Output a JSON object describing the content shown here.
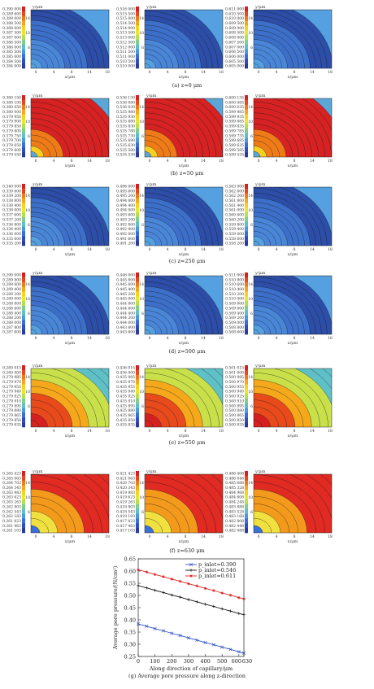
{
  "figure": {
    "axis_x_label": "x/μm",
    "axis_y_label": "y/μm",
    "x_ticks": [
      "0",
      "4",
      "8",
      "14",
      "18"
    ],
    "y_ticks": [
      "14",
      "10",
      "6"
    ],
    "captions": [
      "(a) z=0 μm",
      "(b) z=50 μm",
      "(c) z=250 μm",
      "(d) z=500 μm",
      "(e) z=550 μm",
      "(f) z=630 μm",
      "(g) Average pore pressure along z-direction"
    ],
    "rows": [
      {
        "style": "blue",
        "panels": [
          {
            "legend": [
              "0.390 000",
              "0.389 600",
              "0.389 000",
              "0.388 500",
              "0.388 000",
              "0.387 500",
              "0.387 000",
              "0.386 500",
              "0.386 000",
              "0.385 500",
              "0.385 000",
              "0.384 500",
              "0.384 000"
            ]
          },
          {
            "legend": [
              "0.516 000",
              "0.515 500",
              "0.515 000",
              "0.514 500",
              "0.514 000",
              "0.513 500",
              "0.513 000",
              "0.512 500",
              "0.512 000",
              "0.511 500",
              "0.511 000",
              "0.510 500",
              "0.510 000"
            ]
          },
          {
            "legend": [
              "0.611 000",
              "0.610 500",
              "0.610 000",
              "0.609 500",
              "0.609 000",
              "0.608 500",
              "0.608 000",
              "0.607 500",
              "0.607 000",
              "0.606 500",
              "0.606 000",
              "0.605 500",
              "0.605 000"
            ]
          }
        ]
      },
      {
        "style": "red",
        "panels": [
          {
            "legend": [
              "0.380 150",
              "0.380 100",
              "0.380 050",
              "0.380 000",
              "0.379 950",
              "0.379 900",
              "0.379 850",
              "0.379 800",
              "0.379 750",
              "0.379 700",
              "0.379 650",
              "0.379 600",
              "0.379 550"
            ]
          },
          {
            "legend": [
              "0.536 130",
              "0.536 080",
              "0.536 030",
              "0.535 980",
              "0.535 930",
              "0.535 880",
              "0.535 830",
              "0.535 780",
              "0.535 730",
              "0.535 680",
              "0.535 630",
              "0.535 580",
              "0.535 530"
            ]
          },
          {
            "legend": [
              "0.600 135",
              "0.600 085",
              "0.600 035",
              "0.599 985",
              "0.599 935",
              "0.599 885",
              "0.599 835",
              "0.599 785",
              "0.599 735",
              "0.599 685",
              "0.599 635",
              "0.599 585",
              "0.599 535"
            ]
          }
        ]
      },
      {
        "style": "blue",
        "panels": [
          {
            "legend": [
              "0.340 000",
              "0.339 600",
              "0.339 200",
              "0.338 800",
              "0.338 400",
              "0.338 000",
              "0.337 600",
              "0.337 200",
              "0.336 800",
              "0.336 400",
              "0.336 000",
              "0.335 600",
              "0.335 200"
            ]
          },
          {
            "legend": [
              "0.496 000",
              "0.495 600",
              "0.495 200",
              "0.494 800",
              "0.494 400",
              "0.494 000",
              "0.493 600",
              "0.493 200",
              "0.492 800",
              "0.492 400",
              "0.492 000",
              "0.491 600",
              "0.491 200"
            ]
          },
          {
            "legend": [
              "0.563 000",
              "0.562 600",
              "0.562 200",
              "0.561 800",
              "0.561 400",
              "0.561 000",
              "0.560 600",
              "0.560 200",
              "0.559 800",
              "0.559 400",
              "0.559 000",
              "0.558 600",
              "0.558 200"
            ]
          }
        ]
      },
      {
        "style": "blue",
        "panels": [
          {
            "legend": [
              "0.290 000",
              "0.289 800",
              "0.289 600",
              "0.289 400",
              "0.289 200",
              "0.289 000",
              "0.288 800",
              "0.288 600",
              "0.288 400",
              "0.288 200",
              "0.288 000",
              "0.287 800",
              "0.287 600"
            ]
          },
          {
            "legend": [
              "0.446 000",
              "0.445 800",
              "0.445 600",
              "0.445 400",
              "0.445 200",
              "0.445 000",
              "0.444 800",
              "0.444 600",
              "0.444 400",
              "0.444 200",
              "0.444 000",
              "0.443 800",
              "0.443 600"
            ]
          },
          {
            "legend": [
              "0.511 000",
              "0.510 800",
              "0.510 600",
              "0.510 400",
              "0.510 200",
              "0.510 000",
              "0.509 800",
              "0.509 600",
              "0.509 400",
              "0.509 200",
              "0.509 000",
              "0.508 800",
              "0.508 600"
            ]
          }
        ]
      },
      {
        "style": "rainbow",
        "panels": [
          {
            "legend": [
              "0.280 015",
              "0.280 000",
              "0.279 985",
              "0.279 970",
              "0.279 955",
              "0.279 940",
              "0.279 925",
              "0.279 910",
              "0.279 895",
              "0.279 880",
              "0.279 865",
              "0.279 850",
              "0.279 835"
            ]
          },
          {
            "legend": [
              "0.436 015",
              "0.436 000",
              "0.435 985",
              "0.435 970",
              "0.435 955",
              "0.435 940",
              "0.435 925",
              "0.435 910",
              "0.435 895",
              "0.435 880",
              "0.435 865",
              "0.435 850",
              "0.435 835"
            ]
          },
          {
            "legend": [
              "0.501 015",
              "0.501 000",
              "0.500 985",
              "0.500 970",
              "0.500 955",
              "0.500 940",
              "0.500 925",
              "0.500 910",
              "0.500 895",
              "0.500 880",
              "0.500 865",
              "0.500 850",
              "0.500 835"
            ]
          }
        ]
      },
      {
        "style": "redcorner",
        "panels": [
          {
            "legend": [
              "0.265 423",
              "0.265 063",
              "0.264 703",
              "0.264 343",
              "0.263 983",
              "0.263 623",
              "0.263 263",
              "0.262 903",
              "0.262 543",
              "0.262 183",
              "0.261 823",
              "0.261 463",
              "0.261 103"
            ]
          },
          {
            "legend": [
              "0.421 423",
              "0.421 063",
              "0.420 703",
              "0.420 343",
              "0.419 983",
              "0.419 623",
              "0.419 263",
              "0.418 903",
              "0.418 543",
              "0.418 183",
              "0.417 823",
              "0.417 463",
              "0.417 103"
            ]
          },
          {
            "legend": [
              "0.486 408",
              "0.486 048",
              "0.485 688",
              "0.485 328",
              "0.484 968",
              "0.484 608",
              "0.484 248",
              "0.483 888",
              "0.483 528",
              "0.483 168",
              "0.482 808",
              "0.482 448",
              "0.482 088"
            ]
          }
        ]
      }
    ]
  },
  "chart_data": {
    "type": "line",
    "title": "",
    "xlabel": "Along direction of capillary/μm",
    "ylabel": "Average pore pressure/(N/cm²)",
    "xlim": [
      0,
      630
    ],
    "ylim": [
      0.25,
      0.65
    ],
    "x_ticks": [
      0,
      100,
      200,
      300,
      400,
      500,
      600,
      630
    ],
    "y_ticks": [
      0.25,
      0.3,
      0.35,
      0.4,
      0.45,
      0.5,
      0.55,
      0.6,
      0.65
    ],
    "series": [
      {
        "name": "p_inlet=0.390",
        "color": "#3355cc",
        "marker": "x",
        "x": [
          0,
          50,
          100,
          150,
          200,
          250,
          300,
          350,
          400,
          450,
          500,
          550,
          600,
          630
        ],
        "y": [
          0.383,
          0.374,
          0.364,
          0.355,
          0.345,
          0.336,
          0.326,
          0.317,
          0.307,
          0.298,
          0.288,
          0.279,
          0.269,
          0.264
        ]
      },
      {
        "name": "p_inlet=0.546",
        "color": "#111111",
        "marker": "+",
        "x": [
          0,
          50,
          100,
          150,
          200,
          250,
          300,
          350,
          400,
          450,
          500,
          550,
          600,
          630
        ],
        "y": [
          0.54,
          0.531,
          0.521,
          0.512,
          0.502,
          0.493,
          0.483,
          0.474,
          0.464,
          0.455,
          0.445,
          0.436,
          0.426,
          0.421
        ]
      },
      {
        "name": "p_inlet=0.611",
        "color": "#dd2222",
        "marker": "*",
        "x": [
          0,
          50,
          100,
          150,
          200,
          250,
          300,
          350,
          400,
          450,
          500,
          550,
          600,
          630
        ],
        "y": [
          0.605,
          0.596,
          0.586,
          0.577,
          0.567,
          0.558,
          0.548,
          0.539,
          0.529,
          0.52,
          0.51,
          0.501,
          0.491,
          0.486
        ]
      }
    ]
  }
}
